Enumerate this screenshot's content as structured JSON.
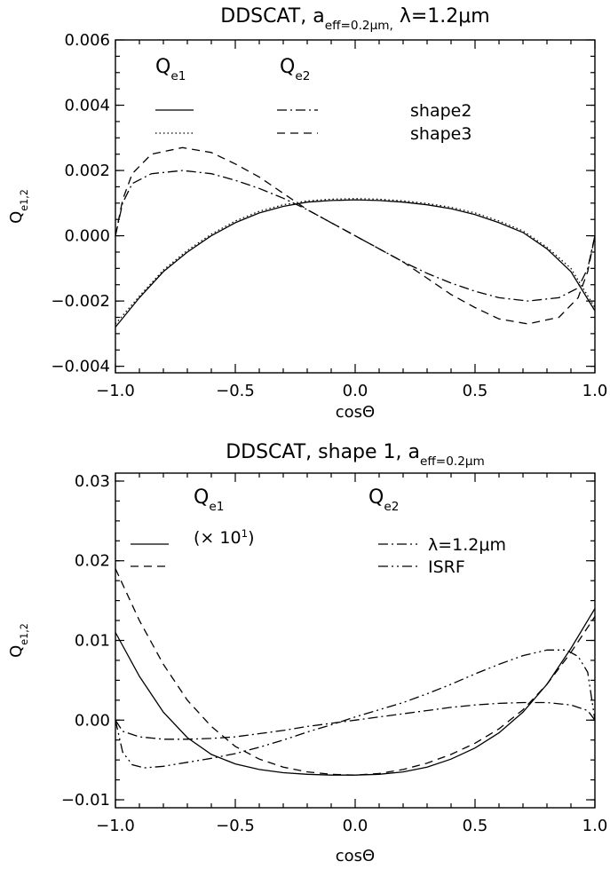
{
  "chart_data": [
    {
      "type": "line",
      "title": "DDSCAT, a_eff=0.2μm, λ=1.2μm",
      "xlabel": "cosΘ",
      "ylabel": "Q_e1,2",
      "xlim": [
        -1.0,
        1.0
      ],
      "ylim": [
        -0.0042,
        0.006
      ],
      "xticks": [
        "−1.0",
        "−0.5",
        "0.0",
        "0.5",
        "1.0"
      ],
      "yticks": [
        "−0.004",
        "−0.002",
        "0.000",
        "0.002",
        "0.004",
        "0.006"
      ],
      "legend": {
        "col1": "Q_e1",
        "col2": "Q_e2",
        "rows": [
          {
            "label": "shape2"
          },
          {
            "label": "shape3"
          }
        ]
      },
      "series": [
        {
          "legend_label": "Q_e1 shape2",
          "style": "solid",
          "x": [
            -1.0,
            -0.9,
            -0.8,
            -0.7,
            -0.6,
            -0.5,
            -0.4,
            -0.3,
            -0.2,
            -0.1,
            0.0,
            0.1,
            0.2,
            0.3,
            0.4,
            0.5,
            0.6,
            0.7,
            0.8,
            0.9,
            1.0
          ],
          "y": [
            -0.0028,
            -0.0019,
            -0.0011,
            -0.0005,
            0.0,
            0.0004,
            0.0007,
            0.0009,
            0.00103,
            0.00108,
            0.0011,
            0.00108,
            0.00103,
            0.00095,
            0.00083,
            0.00065,
            0.0004,
            0.0001,
            -0.0004,
            -0.0011,
            -0.0023
          ]
        },
        {
          "legend_label": "Q_e1 shape3",
          "style": "dotted",
          "x": [
            -1.0,
            -0.9,
            -0.8,
            -0.7,
            -0.6,
            -0.5,
            -0.4,
            -0.3,
            -0.2,
            -0.1,
            0.0,
            0.1,
            0.2,
            0.3,
            0.4,
            0.5,
            0.6,
            0.7,
            0.8,
            0.9,
            1.0
          ],
          "y": [
            -0.0027,
            -0.00185,
            -0.00105,
            -0.00045,
            5e-05,
            0.00045,
            0.00075,
            0.00095,
            0.00107,
            0.00112,
            0.00114,
            0.00112,
            0.00107,
            0.00099,
            0.00087,
            0.0007,
            0.00045,
            0.00015,
            -0.00035,
            -0.001,
            -0.0022
          ]
        },
        {
          "legend_label": "Q_e2 shape2",
          "style": "dash-dot",
          "x": [
            -1.0,
            -0.97,
            -0.93,
            -0.85,
            -0.72,
            -0.6,
            -0.5,
            -0.4,
            -0.3,
            -0.2,
            -0.1,
            0.0,
            0.1,
            0.2,
            0.3,
            0.4,
            0.5,
            0.6,
            0.72,
            0.85,
            0.93,
            0.97,
            1.0
          ],
          "y": [
            0.0,
            0.001,
            0.0016,
            0.0019,
            0.002,
            0.0019,
            0.0017,
            0.00145,
            0.00115,
            0.0008,
            0.0004,
            0.0,
            -0.0004,
            -0.0008,
            -0.00115,
            -0.00145,
            -0.0017,
            -0.0019,
            -0.002,
            -0.0019,
            -0.0016,
            -0.001,
            0.0
          ]
        },
        {
          "legend_label": "Q_e2 shape3",
          "style": "dashed",
          "x": [
            -1.0,
            -0.97,
            -0.93,
            -0.85,
            -0.72,
            -0.6,
            -0.5,
            -0.4,
            -0.3,
            -0.2,
            -0.1,
            0.0,
            0.1,
            0.2,
            0.3,
            0.4,
            0.5,
            0.6,
            0.72,
            0.85,
            0.93,
            0.97,
            1.0
          ],
          "y": [
            0.0,
            0.0011,
            0.0019,
            0.0025,
            0.0027,
            0.00255,
            0.0022,
            0.0018,
            0.0013,
            0.0008,
            0.0004,
            0.0,
            -0.0004,
            -0.0008,
            -0.0013,
            -0.0018,
            -0.0022,
            -0.00255,
            -0.0027,
            -0.0025,
            -0.0019,
            -0.0011,
            0.0
          ]
        }
      ]
    },
    {
      "type": "line",
      "title": "DDSCAT, shape 1, a_eff=0.2μm",
      "xlabel": "cosΘ",
      "ylabel": "Q_e1,2",
      "xlim": [
        -1.0,
        1.0
      ],
      "ylim": [
        -0.011,
        0.031
      ],
      "xticks": [
        "−1.0",
        "−0.5",
        "0.0",
        "0.5",
        "1.0"
      ],
      "yticks": [
        "−0.01",
        "0.00",
        "0.01",
        "0.02",
        "0.03"
      ],
      "legend": {
        "col1": "Q_e1",
        "col2": "Q_e2",
        "scale_note": "(× 10",
        "scale_exp": "1",
        "rows": [
          {
            "label": "λ=1.2μm"
          },
          {
            "label": "ISRF"
          }
        ]
      },
      "series": [
        {
          "legend_label": "Q_e1 λ=1.2μm (×10)",
          "style": "solid",
          "x": [
            -1.0,
            -0.9,
            -0.8,
            -0.7,
            -0.6,
            -0.5,
            -0.4,
            -0.3,
            -0.2,
            -0.1,
            0.0,
            0.1,
            0.2,
            0.3,
            0.4,
            0.5,
            0.6,
            0.7,
            0.8,
            0.9,
            1.0
          ],
          "y": [
            0.011,
            0.0055,
            0.001,
            -0.0022,
            -0.0043,
            -0.0055,
            -0.0062,
            -0.0066,
            -0.0068,
            -0.0069,
            -0.0069,
            -0.0068,
            -0.0065,
            -0.0059,
            -0.0049,
            -0.0035,
            -0.0016,
            0.001,
            0.0045,
            0.009,
            0.014
          ]
        },
        {
          "legend_label": "Q_e1 ISRF (×10)",
          "style": "dashed",
          "x": [
            -1.0,
            -0.9,
            -0.8,
            -0.7,
            -0.6,
            -0.5,
            -0.4,
            -0.3,
            -0.2,
            -0.1,
            0.0,
            0.1,
            0.2,
            0.3,
            0.4,
            0.5,
            0.6,
            0.7,
            0.8,
            0.9,
            1.0
          ],
          "y": [
            0.019,
            0.0125,
            0.007,
            0.0025,
            -0.0008,
            -0.0033,
            -0.0049,
            -0.0059,
            -0.0065,
            -0.0068,
            -0.0069,
            -0.0067,
            -0.0062,
            -0.0054,
            -0.0043,
            -0.0029,
            -0.0011,
            0.0013,
            0.0045,
            0.0085,
            0.013
          ]
        },
        {
          "legend_label": "Q_e2 λ=1.2μm",
          "style": "dash-dot",
          "x": [
            -1.0,
            -0.97,
            -0.9,
            -0.8,
            -0.7,
            -0.6,
            -0.5,
            -0.4,
            -0.3,
            -0.2,
            -0.1,
            0.0,
            0.1,
            0.2,
            0.3,
            0.4,
            0.5,
            0.6,
            0.7,
            0.8,
            0.9,
            0.97,
            1.0
          ],
          "y": [
            0.0,
            -0.0014,
            -0.0021,
            -0.0024,
            -0.0024,
            -0.0023,
            -0.0021,
            -0.0017,
            -0.0013,
            -0.0008,
            -0.0004,
            0.0,
            0.0004,
            0.0008,
            0.0012,
            0.0016,
            0.0019,
            0.0021,
            0.0022,
            0.0022,
            0.0019,
            0.0012,
            0.0
          ]
        },
        {
          "legend_label": "Q_e2 ISRF",
          "style": "dash-dot-dot",
          "x": [
            -1.0,
            -0.97,
            -0.93,
            -0.88,
            -0.8,
            -0.7,
            -0.6,
            -0.5,
            -0.4,
            -0.3,
            -0.2,
            -0.1,
            0.0,
            0.1,
            0.2,
            0.3,
            0.4,
            0.5,
            0.6,
            0.7,
            0.8,
            0.88,
            0.93,
            0.97,
            1.0
          ],
          "y": [
            0.0,
            -0.004,
            -0.0056,
            -0.006,
            -0.0058,
            -0.0053,
            -0.0048,
            -0.0042,
            -0.0034,
            -0.0025,
            -0.0015,
            -0.0006,
            0.0004,
            0.0013,
            0.0022,
            0.0033,
            0.0045,
            0.0058,
            0.007,
            0.0081,
            0.0088,
            0.0088,
            0.008,
            0.006,
            0.0
          ]
        }
      ]
    }
  ]
}
